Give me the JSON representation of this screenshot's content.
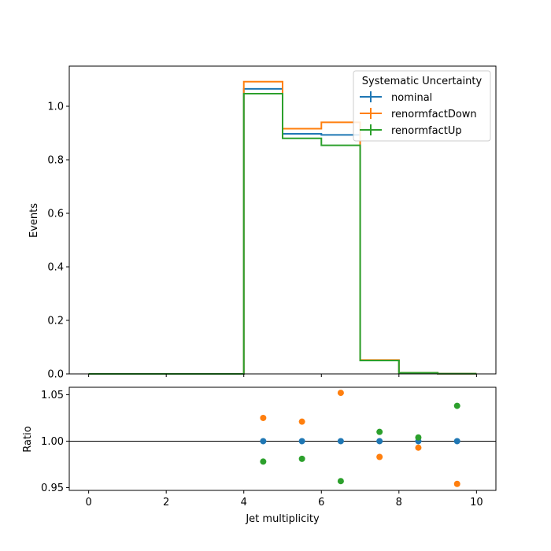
{
  "chart_data": [
    {
      "type": "line",
      "ylabel": "Events",
      "xlim": [
        -0.5,
        10.5
      ],
      "ylim": [
        0,
        1.15
      ],
      "bin_edges": [
        0,
        1,
        2,
        3,
        4,
        5,
        6,
        7,
        8,
        9,
        10
      ],
      "yticks": [
        "0.0",
        "0.2",
        "0.4",
        "0.6",
        "0.8",
        "1.0"
      ],
      "ytick_values": [
        0,
        0.2,
        0.4,
        0.6,
        0.8,
        1.0
      ],
      "legend": {
        "title": "Systematic Uncertainty",
        "placement": "top-right"
      },
      "series": [
        {
          "name": "nominal",
          "color": "#1f77b4",
          "values": [
            0,
            0,
            0,
            0,
            1.065,
            0.897,
            0.893,
            0.051,
            0.004,
            0.0006
          ]
        },
        {
          "name": "renormfactDown",
          "color": "#ff7f0e",
          "values": [
            0,
            0,
            0,
            0,
            1.092,
            0.916,
            0.94,
            0.052,
            0.004,
            0.0006
          ]
        },
        {
          "name": "renormfactUp",
          "color": "#2ca02c",
          "values": [
            0,
            0,
            0,
            0,
            1.047,
            0.88,
            0.854,
            0.05,
            0.004,
            0.0006
          ]
        }
      ]
    },
    {
      "type": "scatter",
      "xlabel": "Jet multiplicity",
      "ylabel": "Ratio",
      "xlim": [
        -0.5,
        10.5
      ],
      "ylim": [
        0.947,
        1.058
      ],
      "xticks": [
        "0",
        "2",
        "4",
        "6",
        "8",
        "10"
      ],
      "xtick_values": [
        0,
        2,
        4,
        6,
        8,
        10
      ],
      "yticks": [
        "0.95",
        "1.00",
        "1.05"
      ],
      "ytick_values": [
        0.95,
        1.0,
        1.05
      ],
      "reference_line": 1.0,
      "series": [
        {
          "name": "nominal",
          "color": "#1f77b4",
          "x": [
            4.5,
            5.5,
            6.5,
            7.5,
            8.5,
            9.5
          ],
          "y": [
            1.0,
            1.0,
            1.0,
            1.0,
            1.0,
            1.0
          ]
        },
        {
          "name": "renormfactDown",
          "color": "#ff7f0e",
          "x": [
            4.5,
            5.5,
            6.5,
            7.5,
            8.5,
            9.5
          ],
          "y": [
            1.025,
            1.021,
            1.052,
            0.983,
            0.993,
            0.954
          ]
        },
        {
          "name": "renormfactUp",
          "color": "#2ca02c",
          "x": [
            4.5,
            5.5,
            6.5,
            7.5,
            8.5,
            9.5
          ],
          "y": [
            0.978,
            0.981,
            0.957,
            1.01,
            1.004,
            1.038
          ]
        }
      ]
    }
  ]
}
